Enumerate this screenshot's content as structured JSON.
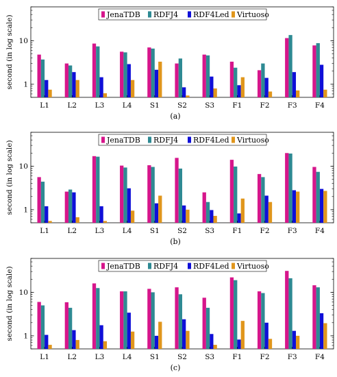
{
  "colors": {
    "JenaTDB": "#d6168b",
    "RDFJ4": "#2e8a93",
    "RDF4Led": "#0f0fd8",
    "Virtuoso": "#e0961c"
  },
  "chart_data": [
    {
      "type": "bar",
      "caption": "(a)",
      "ylabel": "second (in log scale)",
      "yscale": "log",
      "ylim": [
        0.5,
        60
      ],
      "yticks": [
        1,
        10
      ],
      "ytick_labels": [
        "1",
        "10"
      ],
      "legend_position": "top-center",
      "categories": [
        "L1",
        "L2",
        "L3",
        "L4",
        "S1",
        "S2",
        "S3",
        "F1",
        "F2",
        "F3",
        "F4"
      ],
      "series": [
        {
          "name": "JenaTDB",
          "values": [
            4.8,
            3.0,
            8.6,
            5.6,
            7.0,
            3.0,
            4.8,
            3.3,
            2.1,
            11.5,
            7.8
          ]
        },
        {
          "name": "RDFJ4",
          "values": [
            3.7,
            2.7,
            7.4,
            5.4,
            6.6,
            3.9,
            4.6,
            2.4,
            3.0,
            13.5,
            8.8
          ]
        },
        {
          "name": "RDF4Led",
          "values": [
            1.25,
            1.9,
            1.45,
            2.9,
            2.15,
            0.85,
            1.5,
            0.95,
            1.4,
            1.9,
            2.8
          ]
        },
        {
          "name": "Virtuoso",
          "values": [
            0.75,
            1.25,
            0.62,
            1.25,
            3.3,
            0.55,
            0.8,
            1.45,
            0.68,
            0.72,
            0.75
          ]
        }
      ]
    },
    {
      "type": "bar",
      "caption": "(b)",
      "ylabel": "second (in log scale)",
      "yscale": "log",
      "ylim": [
        0.5,
        60
      ],
      "yticks": [
        1,
        10
      ],
      "ytick_labels": [
        "1",
        "10"
      ],
      "legend_position": "top-center",
      "categories": [
        "L1",
        "L2",
        "L3",
        "L4",
        "S1",
        "S2",
        "S3",
        "F1",
        "F2",
        "F3",
        "F4"
      ],
      "series": [
        {
          "name": "JenaTDB",
          "values": [
            5.6,
            2.6,
            17.0,
            10.3,
            10.5,
            15.5,
            2.5,
            14.0,
            6.6,
            20.0,
            9.6
          ]
        },
        {
          "name": "RDFJ4",
          "values": [
            4.4,
            2.9,
            16.5,
            9.3,
            9.6,
            8.8,
            1.5,
            9.8,
            5.6,
            19.5,
            7.4
          ]
        },
        {
          "name": "RDF4Led",
          "values": [
            1.2,
            2.5,
            1.2,
            3.1,
            1.4,
            1.25,
            0.98,
            0.82,
            2.1,
            2.8,
            3.0
          ]
        },
        {
          "name": "Virtuoso",
          "values": [
            0.55,
            0.67,
            0.55,
            0.95,
            2.1,
            1.0,
            0.72,
            1.8,
            1.5,
            2.6,
            2.7
          ]
        }
      ]
    },
    {
      "type": "bar",
      "caption": "(c)",
      "ylabel": "second (in log scale)",
      "yscale": "log",
      "ylim": [
        0.5,
        60
      ],
      "yticks": [
        1,
        10
      ],
      "ytick_labels": [
        "1",
        "10"
      ],
      "legend_position": "top-center",
      "categories": [
        "L1",
        "L2",
        "L3",
        "L4",
        "S1",
        "S2",
        "S3",
        "F1",
        "F2",
        "F3",
        "F4"
      ],
      "series": [
        {
          "name": "JenaTDB",
          "values": [
            6.0,
            5.9,
            16.0,
            10.5,
            12.0,
            13.0,
            7.5,
            22.0,
            10.5,
            31.0,
            14.5
          ]
        },
        {
          "name": "RDFJ4",
          "values": [
            5.0,
            4.4,
            12.5,
            10.5,
            10.0,
            9.0,
            4.4,
            19.0,
            9.6,
            21.0,
            13.0
          ]
        },
        {
          "name": "RDF4Led",
          "values": [
            1.05,
            1.35,
            1.75,
            3.4,
            1.0,
            2.4,
            1.1,
            0.82,
            2.0,
            1.3,
            3.3
          ]
        },
        {
          "name": "Virtuoso",
          "values": [
            0.62,
            0.8,
            0.75,
            1.25,
            2.1,
            1.3,
            0.62,
            2.2,
            0.85,
            1.0,
            1.95
          ]
        }
      ]
    }
  ]
}
